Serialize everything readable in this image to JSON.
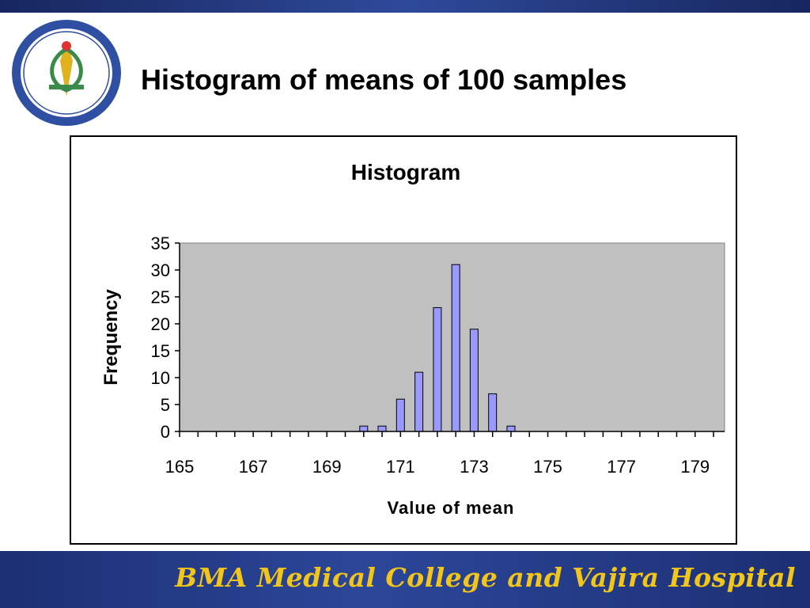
{
  "slide": {
    "title": "Histogram of means of 100 samples",
    "footer_text": "BMA Medical College and Vajira Hospital",
    "logo_icon": "hospital-seal-icon"
  },
  "colors": {
    "bar_fill": "#9999ff",
    "plot_bg": "#c0c0c0",
    "footer_text": "#f2c51a",
    "band": "#1c2f73"
  },
  "chart_data": {
    "type": "bar",
    "title": "Histogram",
    "xlabel": "Value of mean",
    "ylabel": "Frequency",
    "ylim": [
      0,
      35
    ],
    "yticks": [
      0,
      5,
      10,
      15,
      20,
      25,
      30,
      35
    ],
    "xlim": [
      165,
      179.8
    ],
    "xtick_labels": [
      "165",
      "167",
      "169",
      "171",
      "173",
      "175",
      "177",
      "179"
    ],
    "bin_width": 0.5,
    "x": [
      170.0,
      170.5,
      171.0,
      171.5,
      172.0,
      172.5,
      173.0,
      173.5,
      174.0
    ],
    "values": [
      1,
      1,
      6,
      11,
      23,
      31,
      19,
      7,
      1
    ],
    "grid": false,
    "legend": "none"
  }
}
